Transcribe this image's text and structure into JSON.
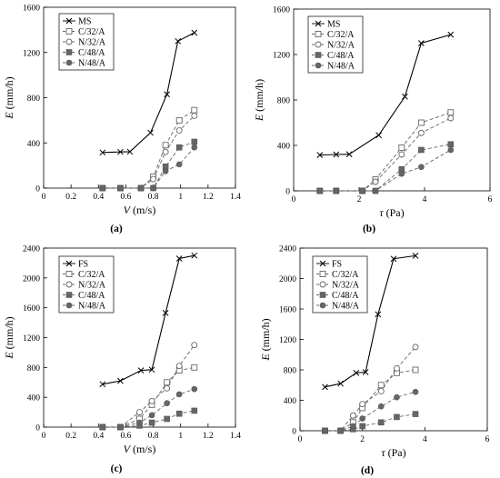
{
  "chart_data": [
    {
      "type": "line",
      "caption": "(a)",
      "xlabel": "V",
      "xunit": "(m/s)",
      "ylabel": "E",
      "yunit": "(mm/h)",
      "xlim": [
        0,
        1.4
      ],
      "ylim": [
        0,
        1600
      ],
      "xticks": [
        "0",
        "0.2",
        "0.4",
        "0.6",
        "0.8",
        "1",
        "1.2",
        "1.4"
      ],
      "yticks": [
        "0",
        "400",
        "800",
        "1200",
        "1600"
      ],
      "legend_position": "top-left",
      "series": [
        {
          "name": "MS",
          "marker": "x",
          "dash": "solid",
          "x": [
            0.43,
            0.56,
            0.63,
            0.78,
            0.9,
            0.98,
            1.1
          ],
          "y": [
            315,
            320,
            322,
            490,
            830,
            1300,
            1375
          ]
        },
        {
          "name": "C/32/A",
          "marker": "open-square",
          "dash": "dashed",
          "x": [
            0.43,
            0.56,
            0.71,
            0.8,
            0.89,
            0.99,
            1.1
          ],
          "y": [
            0,
            0,
            0,
            100,
            380,
            600,
            690
          ]
        },
        {
          "name": "N/32/A",
          "marker": "open-circle",
          "dash": "dashed",
          "x": [
            0.43,
            0.56,
            0.71,
            0.8,
            0.89,
            0.99,
            1.1
          ],
          "y": [
            0,
            0,
            0,
            80,
            320,
            510,
            640
          ]
        },
        {
          "name": "C/48/A",
          "marker": "filled-square",
          "dash": "dashed",
          "x": [
            0.43,
            0.56,
            0.71,
            0.8,
            0.89,
            0.99,
            1.1
          ],
          "y": [
            0,
            0,
            0,
            0,
            190,
            360,
            410
          ]
        },
        {
          "name": "N/48/A",
          "marker": "filled-circle",
          "dash": "dashed",
          "x": [
            0.43,
            0.56,
            0.71,
            0.8,
            0.89,
            0.99,
            1.1
          ],
          "y": [
            0,
            0,
            0,
            0,
            150,
            210,
            360
          ]
        }
      ]
    },
    {
      "type": "line",
      "caption": "(b)",
      "xlabel": "τ",
      "xunit": "(Pa)",
      "ylabel": "E",
      "yunit": "(mm/h)",
      "xlim": [
        0,
        6
      ],
      "ylim": [
        0,
        1600
      ],
      "xticks": [
        "0",
        "2",
        "4",
        "6"
      ],
      "yticks": [
        "0",
        "400",
        "800",
        "1200",
        "1600"
      ],
      "legend_position": "top-left",
      "series": [
        {
          "name": "MS",
          "marker": "x",
          "dash": "solid",
          "x": [
            0.8,
            1.3,
            1.7,
            2.6,
            3.4,
            3.9,
            4.8
          ],
          "y": [
            315,
            320,
            322,
            490,
            830,
            1300,
            1375
          ]
        },
        {
          "name": "C/32/A",
          "marker": "open-square",
          "dash": "dashed",
          "x": [
            0.8,
            1.3,
            2.1,
            2.5,
            3.3,
            3.9,
            4.8
          ],
          "y": [
            0,
            0,
            0,
            100,
            380,
            600,
            690
          ]
        },
        {
          "name": "N/32/A",
          "marker": "open-circle",
          "dash": "dashed",
          "x": [
            0.8,
            1.3,
            2.1,
            2.5,
            3.3,
            3.9,
            4.8
          ],
          "y": [
            0,
            0,
            0,
            80,
            320,
            510,
            640
          ]
        },
        {
          "name": "C/48/A",
          "marker": "filled-square",
          "dash": "dashed",
          "x": [
            0.8,
            1.3,
            2.1,
            2.5,
            3.3,
            3.9,
            4.8
          ],
          "y": [
            0,
            0,
            0,
            0,
            190,
            360,
            410
          ]
        },
        {
          "name": "N/48/A",
          "marker": "filled-circle",
          "dash": "dashed",
          "x": [
            0.8,
            1.3,
            2.1,
            2.5,
            3.3,
            3.9,
            4.8
          ],
          "y": [
            0,
            0,
            0,
            0,
            150,
            210,
            360
          ]
        }
      ]
    },
    {
      "type": "line",
      "caption": "(c)",
      "xlabel": "V",
      "xunit": "(m/s)",
      "ylabel": "E",
      "yunit": "(mm/h)",
      "xlim": [
        0,
        1.4
      ],
      "ylim": [
        0,
        2400
      ],
      "xticks": [
        "0",
        "0.2",
        "0.4",
        "0.6",
        "0.8",
        "1",
        "1.2",
        "1.4"
      ],
      "yticks": [
        "0",
        "400",
        "800",
        "1200",
        "1600",
        "2000",
        "2400"
      ],
      "legend_position": "top-left",
      "series": [
        {
          "name": "FS",
          "marker": "x",
          "dash": "solid",
          "x": [
            0.43,
            0.56,
            0.71,
            0.79,
            0.89,
            0.99,
            1.1
          ],
          "y": [
            575,
            620,
            760,
            770,
            1530,
            2260,
            2300
          ]
        },
        {
          "name": "C/32/A",
          "marker": "open-square",
          "dash": "dashed",
          "x": [
            0.43,
            0.56,
            0.7,
            0.79,
            0.9,
            0.99,
            1.1
          ],
          "y": [
            0,
            0,
            110,
            300,
            600,
            760,
            800
          ]
        },
        {
          "name": "N/32/A",
          "marker": "open-circle",
          "dash": "dashed",
          "x": [
            0.43,
            0.56,
            0.7,
            0.79,
            0.9,
            0.99,
            1.1
          ],
          "y": [
            0,
            0,
            200,
            350,
            520,
            820,
            1100
          ]
        },
        {
          "name": "C/48/A",
          "marker": "filled-square",
          "dash": "dashed",
          "x": [
            0.43,
            0.56,
            0.7,
            0.79,
            0.9,
            0.99,
            1.1
          ],
          "y": [
            0,
            0,
            20,
            60,
            110,
            180,
            220
          ]
        },
        {
          "name": "N/48/A",
          "marker": "filled-circle",
          "dash": "dashed",
          "x": [
            0.43,
            0.56,
            0.7,
            0.79,
            0.9,
            0.99,
            1.1
          ],
          "y": [
            0,
            0,
            60,
            160,
            320,
            440,
            510
          ]
        }
      ]
    },
    {
      "type": "line",
      "caption": "(d)",
      "xlabel": "τ",
      "xunit": "(Pa)",
      "ylabel": "E",
      "yunit": "(mm/h)",
      "xlim": [
        0,
        6
      ],
      "ylim": [
        0,
        2400
      ],
      "xticks": [
        "0",
        "2",
        "4",
        "6"
      ],
      "yticks": [
        "0",
        "400",
        "800",
        "1200",
        "1600",
        "2000",
        "2400"
      ],
      "legend_position": "top-left",
      "series": [
        {
          "name": "FS",
          "marker": "x",
          "dash": "solid",
          "x": [
            0.8,
            1.3,
            1.8,
            2.1,
            2.5,
            3.0,
            3.7
          ],
          "y": [
            575,
            620,
            760,
            770,
            1530,
            2260,
            2300
          ]
        },
        {
          "name": "C/32/A",
          "marker": "open-square",
          "dash": "dashed",
          "x": [
            0.8,
            1.3,
            1.7,
            2.0,
            2.6,
            3.1,
            3.7
          ],
          "y": [
            0,
            0,
            110,
            300,
            600,
            760,
            800
          ]
        },
        {
          "name": "N/32/A",
          "marker": "open-circle",
          "dash": "dashed",
          "x": [
            0.8,
            1.3,
            1.7,
            2.0,
            2.6,
            3.1,
            3.7
          ],
          "y": [
            0,
            0,
            200,
            350,
            520,
            820,
            1100
          ]
        },
        {
          "name": "C/48/A",
          "marker": "filled-square",
          "dash": "dashed",
          "x": [
            0.8,
            1.3,
            1.7,
            2.0,
            2.6,
            3.1,
            3.7
          ],
          "y": [
            0,
            0,
            20,
            60,
            110,
            180,
            220
          ]
        },
        {
          "name": "N/48/A",
          "marker": "filled-circle",
          "dash": "dashed",
          "x": [
            0.8,
            1.3,
            1.7,
            2.0,
            2.6,
            3.1,
            3.7
          ],
          "y": [
            0,
            0,
            60,
            160,
            320,
            440,
            510
          ]
        }
      ]
    }
  ]
}
